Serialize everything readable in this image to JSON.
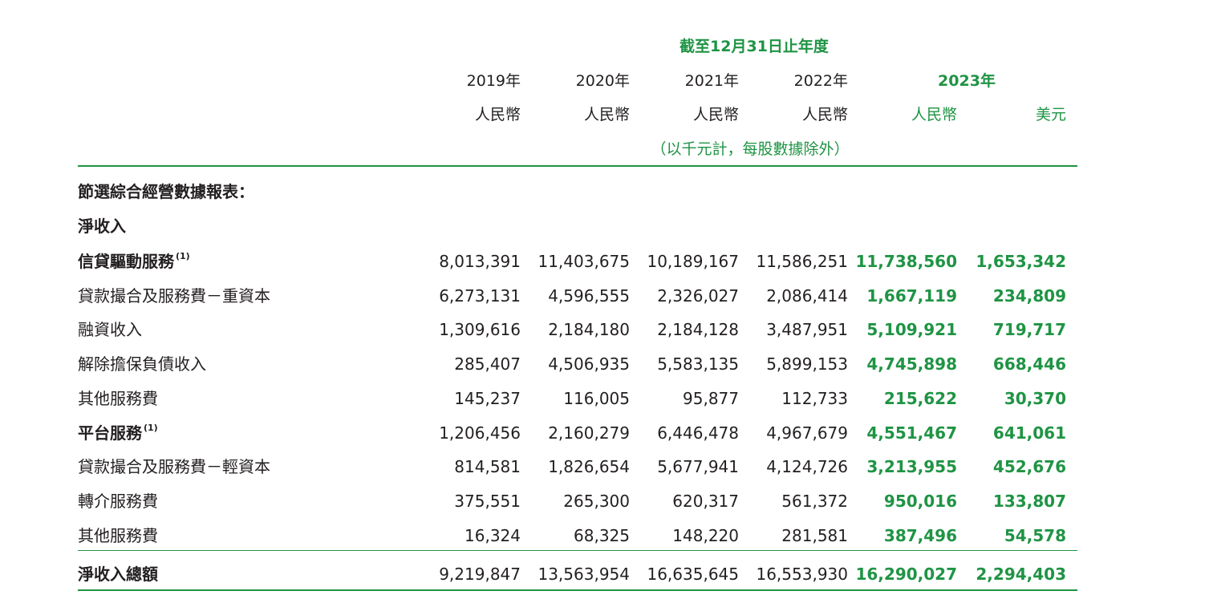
{
  "header": {
    "period": "截至12月31日止年度",
    "years": [
      {
        "year": "2019年",
        "currency": "人民幣"
      },
      {
        "year": "2020年",
        "currency": "人民幣"
      },
      {
        "year": "2021年",
        "currency": "人民幣"
      },
      {
        "year": "2022年",
        "currency": "人民幣"
      }
    ],
    "year_2023": "2023年",
    "currency_2023_rmb": "人民幣",
    "currency_2023_usd": "美元",
    "unit_note": "（以千元計，每股數據除外）"
  },
  "sections": {
    "title": "節選綜合經營數據報表：",
    "subtitle": "淨收入"
  },
  "rows": [
    {
      "label": "信貸驅動服務",
      "note": "(1)",
      "bold": true,
      "values": [
        "8,013,391",
        "11,403,675",
        "10,189,167",
        "11,586,251",
        "11,738,560",
        "1,653,342"
      ]
    },
    {
      "label": "貸款撮合及服務費－重資本",
      "note": "",
      "bold": false,
      "values": [
        "6,273,131",
        "4,596,555",
        "2,326,027",
        "2,086,414",
        "1,667,119",
        "234,809"
      ]
    },
    {
      "label": "融資收入",
      "note": "",
      "bold": false,
      "values": [
        "1,309,616",
        "2,184,180",
        "2,184,128",
        "3,487,951",
        "5,109,921",
        "719,717"
      ]
    },
    {
      "label": "解除擔保負債收入",
      "note": "",
      "bold": false,
      "values": [
        "285,407",
        "4,506,935",
        "5,583,135",
        "5,899,153",
        "4,745,898",
        "668,446"
      ]
    },
    {
      "label": "其他服務費",
      "note": "",
      "bold": false,
      "values": [
        "145,237",
        "116,005",
        "95,877",
        "112,733",
        "215,622",
        "30,370"
      ]
    },
    {
      "label": "平台服務",
      "note": "(1)",
      "bold": true,
      "values": [
        "1,206,456",
        "2,160,279",
        "6,446,478",
        "4,967,679",
        "4,551,467",
        "641,061"
      ]
    },
    {
      "label": "貸款撮合及服務費－輕資本",
      "note": "",
      "bold": false,
      "values": [
        "814,581",
        "1,826,654",
        "5,677,941",
        "4,124,726",
        "3,213,955",
        "452,676"
      ]
    },
    {
      "label": "轉介服務費",
      "note": "",
      "bold": false,
      "values": [
        "375,551",
        "265,300",
        "620,317",
        "561,372",
        "950,016",
        "133,807"
      ]
    },
    {
      "label": "其他服務費",
      "note": "",
      "bold": false,
      "values": [
        "16,324",
        "68,325",
        "148,220",
        "281,581",
        "387,496",
        "54,578"
      ]
    }
  ],
  "total": {
    "label": "淨收入總額",
    "values": [
      "9,219,847",
      "13,563,954",
      "16,635,645",
      "16,553,930",
      "16,290,027",
      "2,294,403"
    ]
  }
}
